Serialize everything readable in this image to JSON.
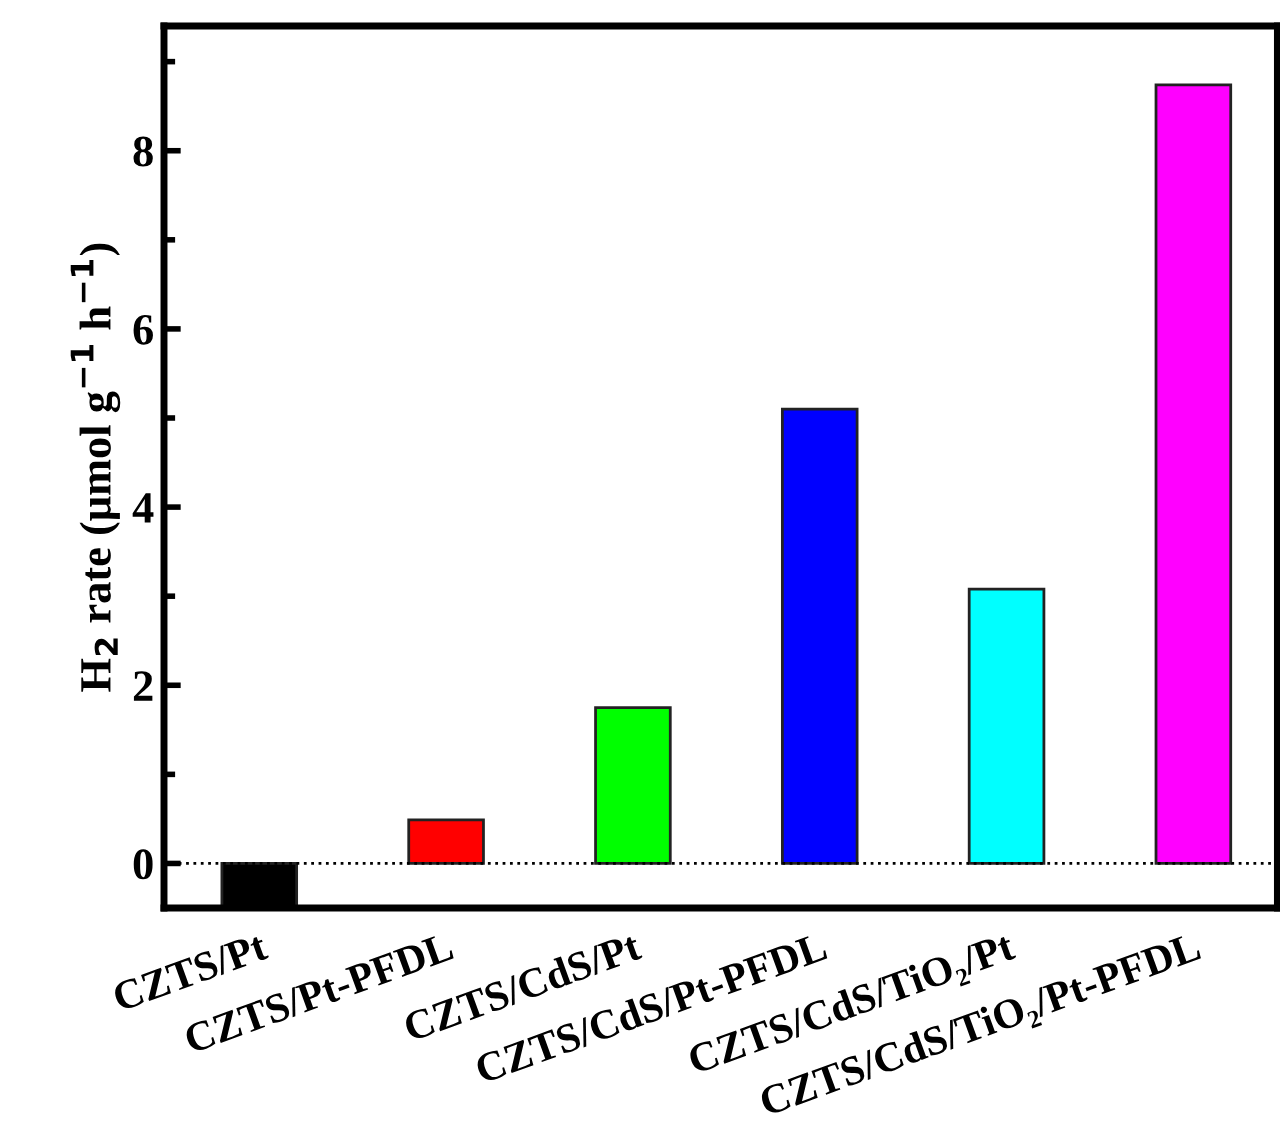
{
  "chart_data": {
    "type": "bar",
    "ylabel": "H$_{2}$ rate (μmol g$^{−1}$ h$^{−1}$)",
    "categories": [
      "CZTS/Pt",
      "CZTS/Pt-PFDL",
      "CZTS/CdS/Pt",
      "CZTS/CdS/Pt-PFDL",
      "CZTS/CdS/TiO₂/Pt",
      "CZTS/CdS/TiO₂/Pt-PFDL"
    ],
    "values": [
      -0.5,
      0.49,
      1.75,
      5.1,
      3.08,
      8.74
    ],
    "colors": [
      "#000000",
      "#ff0000",
      "#00ff00",
      "#0000ff",
      "#00ffff",
      "#ff00ff"
    ],
    "ylim": [
      -0.5,
      9.4
    ],
    "yticks": [
      0,
      2,
      4,
      6,
      8
    ],
    "grid": false,
    "legend": false,
    "ref_lines": [
      {
        "axis": "y",
        "value": 0,
        "line_style": "dotted",
        "color": "#000000"
      }
    ]
  }
}
